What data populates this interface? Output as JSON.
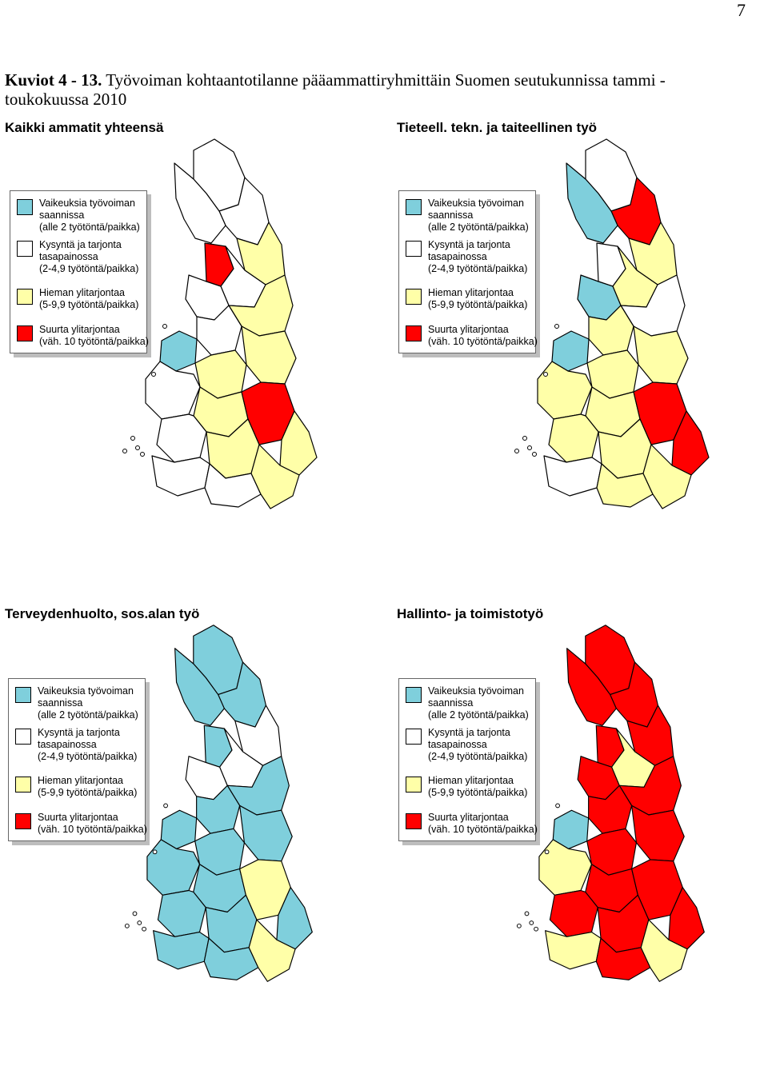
{
  "page": {
    "number": "7"
  },
  "caption": {
    "label": "Kuviot 4 - 13.",
    "text": "Työvoiman kohtaantotilanne pääammattiryhmittäin Suomen seutukunnissa tammi - toukokuussa 2010"
  },
  "colors": {
    "shortage": "#7fcfdc",
    "balance": "#ffffff",
    "slight_surplus": "#ffffa8",
    "large_surplus": "#ff0000",
    "border": "#000000"
  },
  "legend": {
    "items": [
      {
        "category": "shortage",
        "line1": "Vaikeuksia työvoiman",
        "line2": "saannissa",
        "line3": "(alle 2 työtöntä/paikka)"
      },
      {
        "category": "balance",
        "line1": "Kysyntä ja tarjonta",
        "line2": "tasapainossa",
        "line3": "(2-4,9 työtöntä/paikka)"
      },
      {
        "category": "slight_surplus",
        "line1": "Hieman ylitarjontaa",
        "line2": "(5-9,9 työtöntä/paikka)",
        "line3": ""
      },
      {
        "category": "large_surplus",
        "line1": "Suurta ylitarjontaa",
        "line2": "(väh. 10 työtöntä/paikka)",
        "line3": ""
      }
    ]
  },
  "maps": [
    {
      "title": "Kaikki ammatit yhteensä",
      "regions": [
        "balance",
        "balance",
        "balance",
        "slight_surplus",
        "large_surplus",
        "balance",
        "balance",
        "slight_surplus",
        "balance",
        "shortage",
        "slight_surplus",
        "slight_surplus",
        "balance",
        "slight_surplus",
        "large_surplus",
        "slight_surplus",
        "balance",
        "slight_surplus",
        "balance",
        "balance",
        "slight_surplus"
      ]
    },
    {
      "title": "Tieteell. tekn. ja taiteellinen työ",
      "regions": [
        "balance",
        "large_surplus",
        "shortage",
        "slight_surplus",
        "balance",
        "slight_surplus",
        "shortage",
        "balance",
        "slight_surplus",
        "shortage",
        "slight_surplus",
        "slight_surplus",
        "slight_surplus",
        "slight_surplus",
        "large_surplus",
        "large_surplus",
        "slight_surplus",
        "slight_surplus",
        "balance",
        "slight_surplus",
        "slight_surplus"
      ]
    },
    {
      "title": "Terveydenhuolto, sos.alan työ",
      "regions": [
        "shortage",
        "shortage",
        "shortage",
        "balance",
        "shortage",
        "balance",
        "balance",
        "shortage",
        "shortage",
        "shortage",
        "shortage",
        "shortage",
        "shortage",
        "shortage",
        "slight_surplus",
        "shortage",
        "shortage",
        "shortage",
        "shortage",
        "shortage",
        "slight_surplus"
      ]
    },
    {
      "title": "Hallinto- ja toimistotyö",
      "regions": [
        "large_surplus",
        "large_surplus",
        "large_surplus",
        "large_surplus",
        "large_surplus",
        "slight_surplus",
        "large_surplus",
        "large_surplus",
        "large_surplus",
        "shortage",
        "large_surplus",
        "large_surplus",
        "slight_surplus",
        "large_surplus",
        "large_surplus",
        "large_surplus",
        "large_surplus",
        "large_surplus",
        "slight_surplus",
        "large_surplus",
        "slight_surplus"
      ]
    }
  ]
}
